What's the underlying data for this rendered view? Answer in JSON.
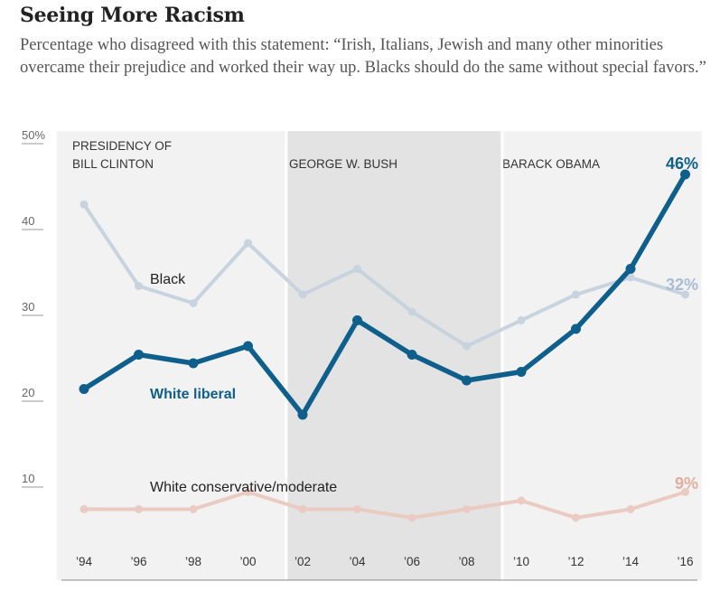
{
  "header": {
    "title": "Seeing More Racism",
    "subtitle": "Percentage who disagreed with this statement: “Irish, Italians, Jewish and many other minorities overcame their prejudice and worked their way up. Blacks should do the same without special favors.”"
  },
  "colors": {
    "white_liberal": "#0e5f8b",
    "black": "#c7d3df",
    "white_conservative": "#ebcbc1",
    "black_end_label": "#a9bdd2",
    "conservative_end_label": "#e0ada0",
    "clinton_band": "#f2f2f2",
    "bush_band": "#e3e3e3",
    "obama_band": "#f2f2f2"
  },
  "chart_data": {
    "type": "line",
    "title": "Seeing More Racism",
    "ylim": [
      0,
      50
    ],
    "y_ticks": [
      {
        "value": 50,
        "label": "50%"
      },
      {
        "value": 40,
        "label": "40"
      },
      {
        "value": 30,
        "label": "30"
      },
      {
        "value": 20,
        "label": "20"
      },
      {
        "value": 10,
        "label": "10"
      }
    ],
    "x": [
      1994,
      1996,
      1998,
      2000,
      2002,
      2004,
      2006,
      2008,
      2010,
      2012,
      2014,
      2016
    ],
    "x_tick_labels": [
      "’94",
      "’96",
      "’98",
      "’00",
      "’02",
      "’04",
      "’06",
      "’08",
      "’10",
      "’12",
      "’14",
      "’16"
    ],
    "grid": false,
    "periods": [
      {
        "label": "PRESIDENCY OF\nBILL CLINTON",
        "start": 1993.0,
        "end": 2001.4
      },
      {
        "label": "GEORGE W. BUSH",
        "start": 2001.4,
        "end": 2009.3
      },
      {
        "label": "BARACK OBAMA",
        "start": 2009.3,
        "end": 2016.6
      }
    ],
    "series": [
      {
        "name": "Black",
        "color_key": "black",
        "values": [
          42.5,
          33,
          31,
          38,
          32,
          35,
          30,
          26,
          29,
          32,
          34,
          32
        ],
        "end_label": "32%"
      },
      {
        "name": "White liberal",
        "color_key": "white_liberal",
        "values": [
          21,
          25,
          24,
          26,
          18,
          29,
          25,
          22,
          23,
          28,
          35,
          46
        ],
        "end_label": "46%"
      },
      {
        "name": "White conservative/moderate",
        "color_key": "white_conservative",
        "values": [
          7,
          7,
          7,
          9,
          7,
          7,
          6,
          7,
          8,
          6,
          7,
          9
        ],
        "end_label": "9%"
      }
    ]
  }
}
